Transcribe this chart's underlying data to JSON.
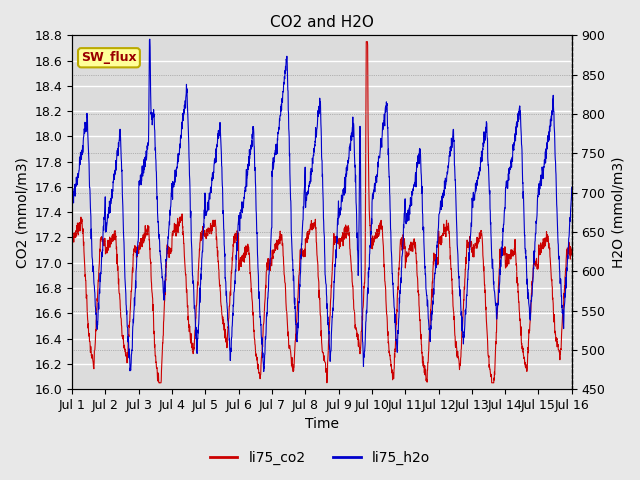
{
  "title": "CO2 and H2O",
  "xlabel": "Time",
  "ylabel_left": "CO2 (mmol/m3)",
  "ylabel_right": "H2O (mmol/m3)",
  "ylim_left": [
    16.0,
    18.8
  ],
  "ylim_right": [
    450,
    900
  ],
  "xlim": [
    0,
    15
  ],
  "xtick_labels": [
    "Jul 1",
    "Jul 2",
    "Jul 3",
    "Jul 4",
    "Jul 5",
    "Jul 6",
    "Jul 7",
    "Jul 8",
    "Jul 9",
    "Jul 10",
    "Jul 11",
    "Jul 12",
    "Jul 13",
    "Jul 14",
    "Jul 15",
    "Jul 16"
  ],
  "yticks_left": [
    16.0,
    16.2,
    16.4,
    16.6,
    16.8,
    17.0,
    17.2,
    17.4,
    17.6,
    17.8,
    18.0,
    18.2,
    18.4,
    18.6,
    18.8
  ],
  "yticks_right": [
    450,
    500,
    550,
    600,
    650,
    700,
    750,
    800,
    850,
    900
  ],
  "color_co2": "#cc0000",
  "color_h2o": "#0000cc",
  "label_co2": "li75_co2",
  "label_h2o": "li75_h2o",
  "annotation_text": "SW_flux",
  "annotation_bg": "#ffff99",
  "annotation_border": "#bbaa00",
  "fig_bg": "#e8e8e8",
  "plot_bg": "#dcdcdc",
  "title_fontsize": 11,
  "axis_fontsize": 10,
  "tick_fontsize": 9,
  "legend_fontsize": 10
}
